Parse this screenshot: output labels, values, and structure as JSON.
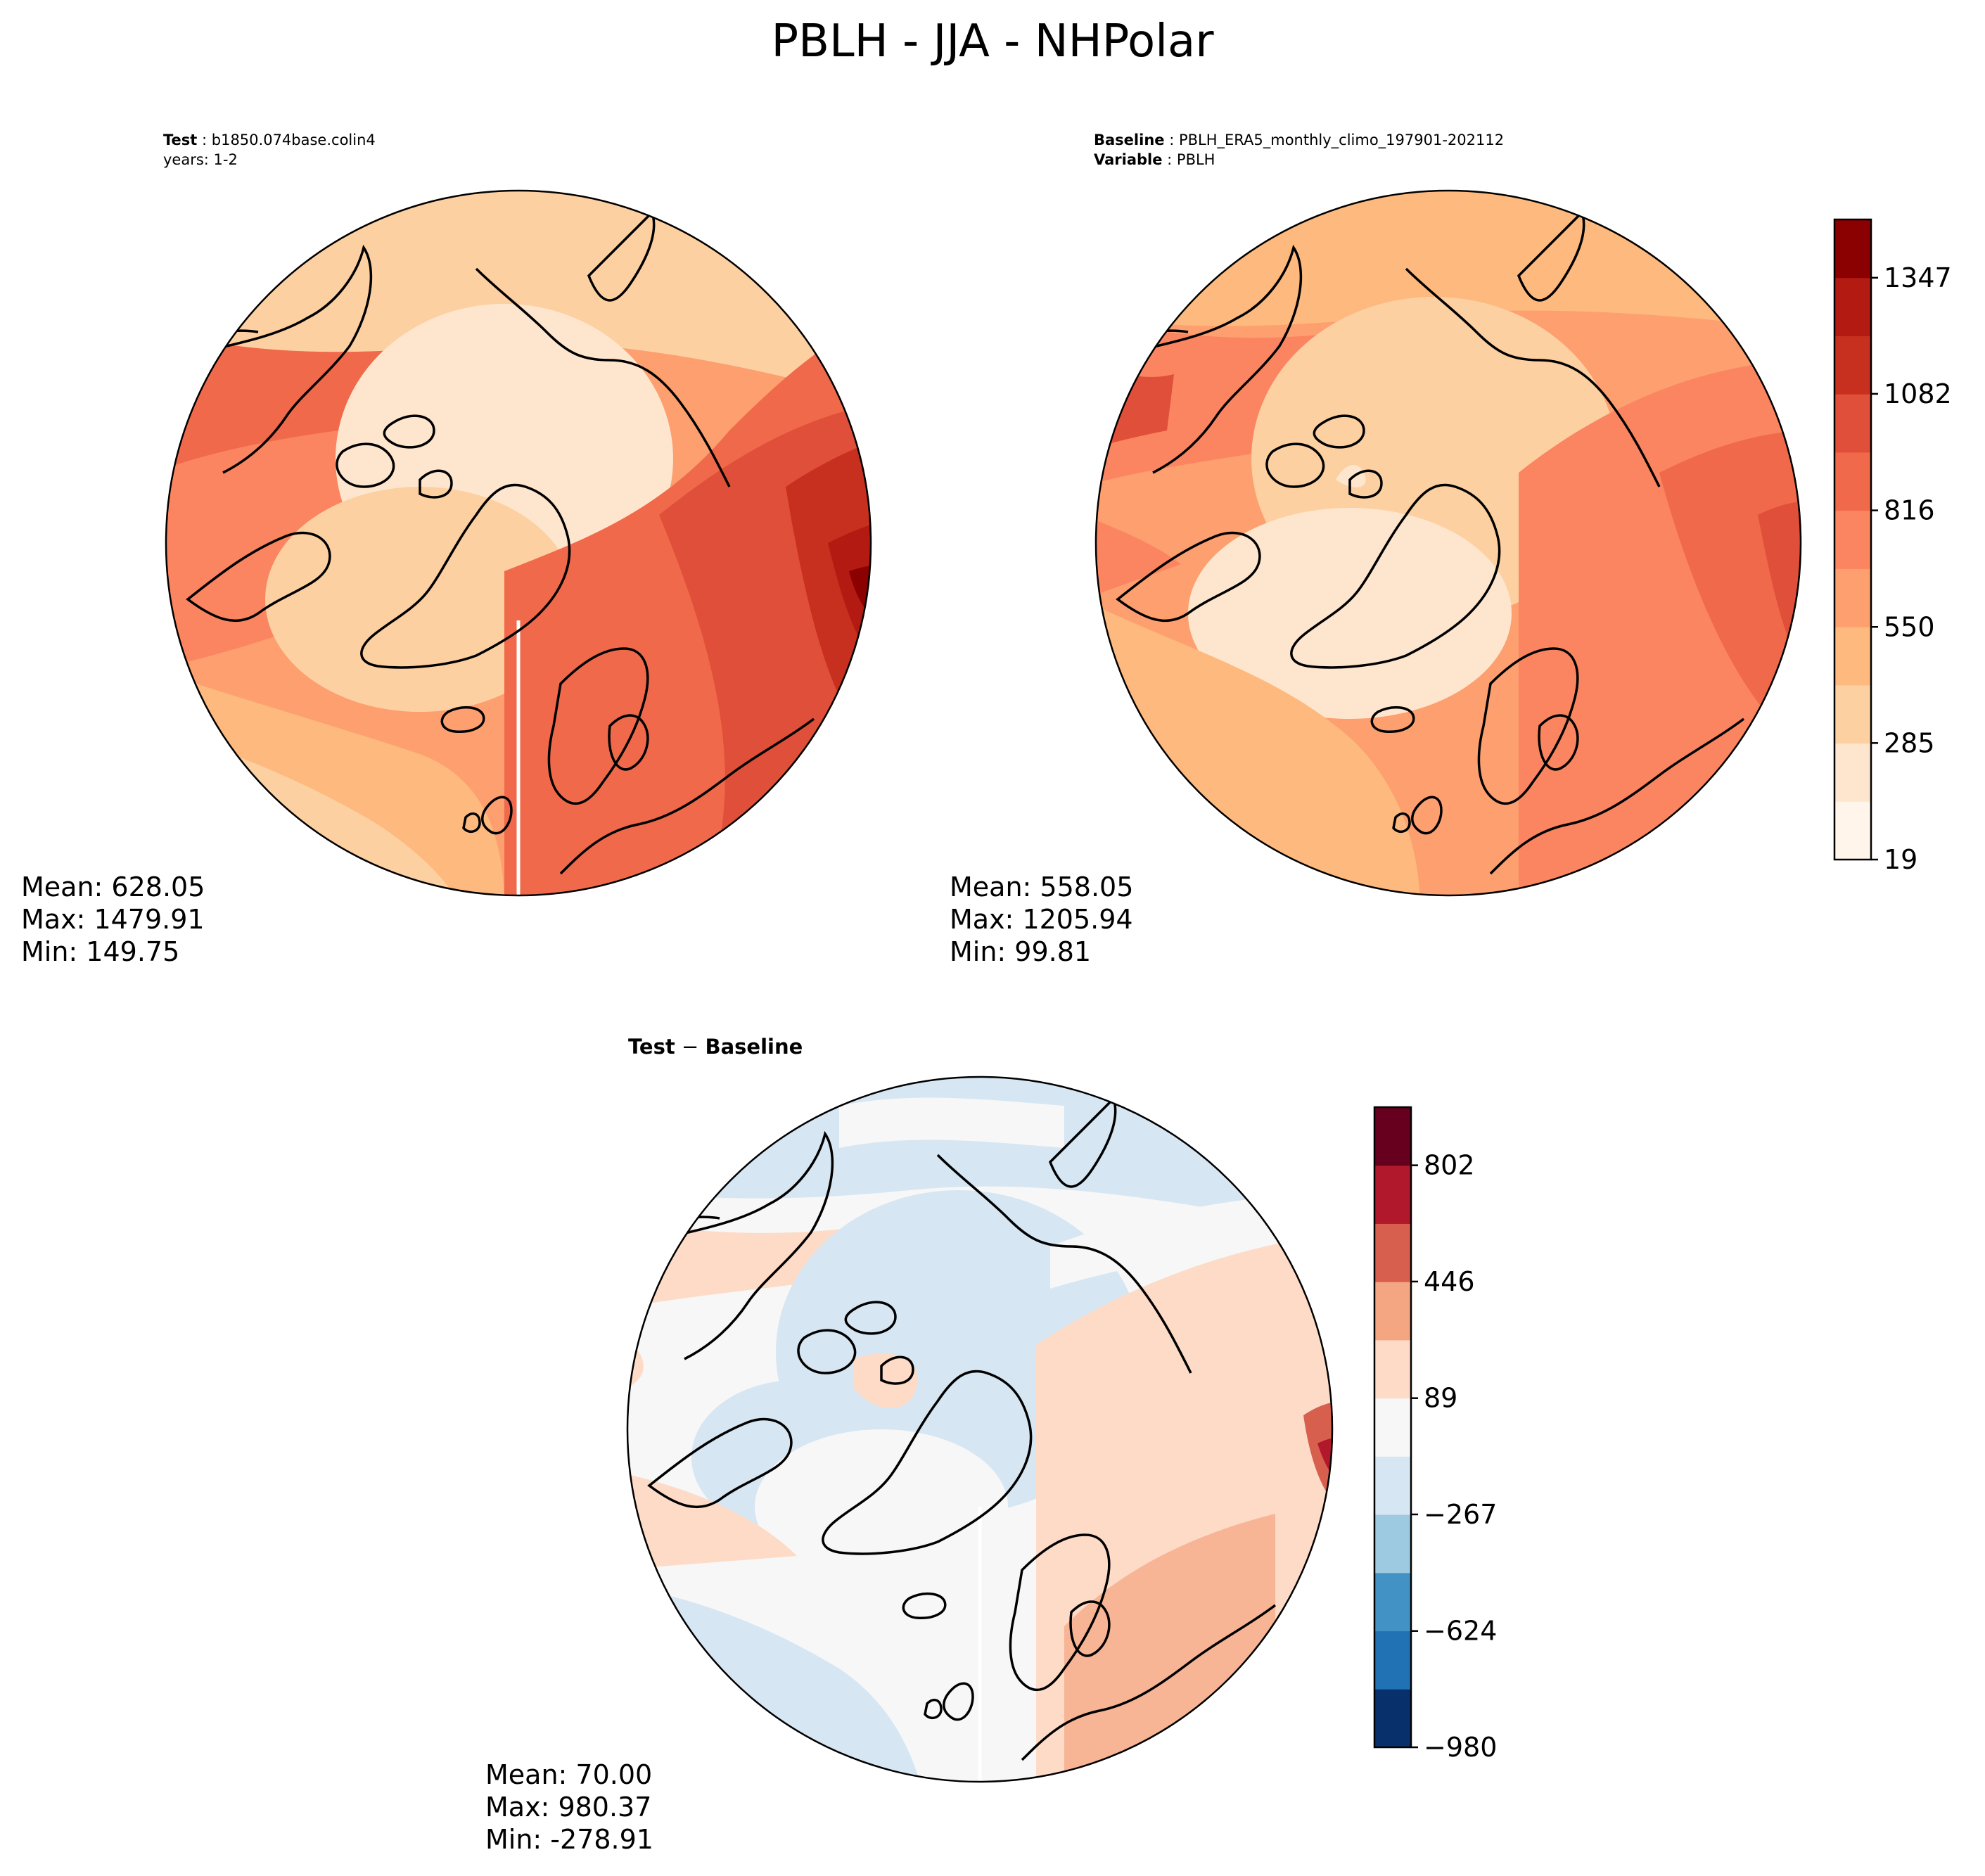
{
  "figure": {
    "title": "PBLH - JJA - NHPolar"
  },
  "colors": {
    "background": "#ffffff",
    "coast": "#000000",
    "seq_palette": [
      "#fff5eb",
      "#fee6ce",
      "#fdd0a2",
      "#fdb97e",
      "#fd9f6f",
      "#fb8560",
      "#f0694b",
      "#e04f39",
      "#c7301f",
      "#b21a12",
      "#8b0000"
    ],
    "div_palette": [
      "#08306b",
      "#2171b5",
      "#4292c6",
      "#9ecae1",
      "#d6e6f2",
      "#f7f7f7",
      "#fddbc7",
      "#f4a582",
      "#d6604d",
      "#b2182b",
      "#67001f"
    ]
  },
  "panels": {
    "test": {
      "header": [
        {
          "bold": "Test",
          "text": " : b1850.074base.colin4"
        },
        {
          "bold": "",
          "text": "years: 1-2"
        }
      ],
      "stats": [
        "Mean: 628.05",
        "Max: 1479.91",
        "Min: 149.75"
      ]
    },
    "baseline": {
      "header": [
        {
          "bold": "Baseline",
          "text": " : PBLH_ERA5_monthly_climo_197901-202112"
        },
        {
          "bold": "Variable",
          "text": " : PBLH"
        }
      ],
      "stats": [
        "Mean: 558.05",
        "Max: 1205.94",
        "Min: 99.81"
      ]
    },
    "diff": {
      "header": [
        {
          "bold": "Test",
          "text": " − ",
          "bold2": "Baseline"
        }
      ],
      "stats": [
        "Mean: 70.00",
        "Max: 980.37",
        "Min: -278.91"
      ]
    }
  },
  "chart_data": [
    {
      "type": "heatmap",
      "projection": "north-polar-stereographic",
      "title": "Test : b1850.074base.colin4",
      "subtitle": "years: 1-2",
      "variable": "PBLH",
      "stats": {
        "mean": 628.05,
        "max": 1479.91,
        "min": 149.75
      },
      "colorbar_ref": "shared sequential colorbar"
    },
    {
      "type": "heatmap",
      "projection": "north-polar-stereographic",
      "title": "Baseline : PBLH_ERA5_monthly_climo_197901-202112",
      "subtitle": "Variable : PBLH",
      "stats": {
        "mean": 558.05,
        "max": 1205.94,
        "min": 99.81
      },
      "colorbar": {
        "range": [
          19,
          1480
        ],
        "ticks": [
          19,
          285,
          550,
          816,
          1082,
          1347
        ],
        "levels": 11,
        "cmap": "OrRd-like"
      }
    },
    {
      "type": "heatmap",
      "projection": "north-polar-stereographic",
      "title": "Test − Baseline",
      "stats": {
        "mean": 70.0,
        "max": 980.37,
        "min": -278.91
      },
      "colorbar": {
        "range": [
          -980,
          980
        ],
        "ticks": [
          -980,
          -624,
          -267,
          89,
          446,
          802
        ],
        "levels": 11,
        "cmap": "RdBu_r-like"
      }
    }
  ]
}
